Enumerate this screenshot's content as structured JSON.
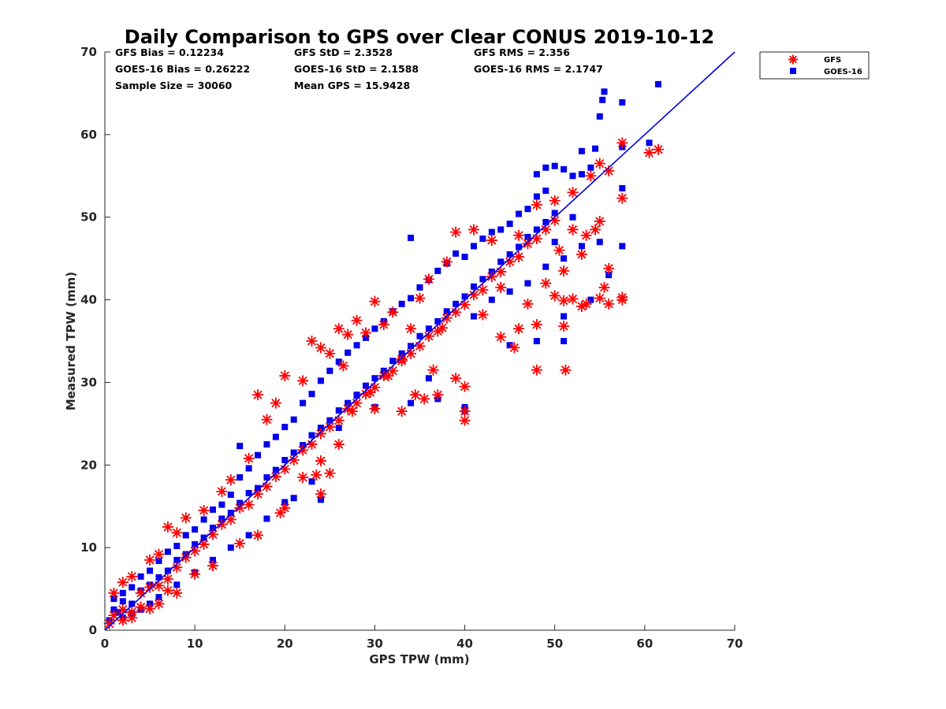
{
  "chart_data": {
    "type": "scatter",
    "title": "Daily Comparison to GPS over Clear CONUS 2019-10-12",
    "xlabel": "GPS TPW (mm)",
    "ylabel": "Measured TPW (mm)",
    "xlim": [
      0,
      70
    ],
    "ylim": [
      0,
      70
    ],
    "xticks": [
      "0",
      "10",
      "20",
      "30",
      "40",
      "50",
      "60",
      "70"
    ],
    "yticks": [
      "0",
      "10",
      "20",
      "30",
      "40",
      "50",
      "60",
      "70"
    ],
    "legend_position": "top-right outside",
    "stats": {
      "gfs_bias": "GFS Bias = 0.12234",
      "gfs_std": "GFS StD = 2.3528",
      "gfs_rms": "GFS RMS = 2.356",
      "goes_bias": "GOES-16 Bias = 0.26222",
      "goes_std": "GOES-16 StD = 2.1588",
      "goes_rms": "GOES-16 RMS = 2.1747",
      "sample_size": "Sample Size = 30060",
      "mean_gps": "Mean GPS = 15.9428"
    },
    "reference_line": {
      "name": "1:1 line",
      "color": "#0000ee",
      "x": [
        0,
        70
      ],
      "y": [
        0,
        70
      ]
    },
    "series": [
      {
        "name": "GFS",
        "marker": "asterisk",
        "color": "#ff0000",
        "points": [
          [
            1,
            1.8
          ],
          [
            2,
            2.5
          ],
          [
            3,
            2.2
          ],
          [
            4,
            4.5
          ],
          [
            5,
            5.2
          ],
          [
            6,
            5.4
          ],
          [
            7,
            6.2
          ],
          [
            8,
            7.6
          ],
          [
            9,
            8.8
          ],
          [
            10,
            9.6
          ],
          [
            11,
            10.4
          ],
          [
            12,
            11.6
          ],
          [
            13,
            12.8
          ],
          [
            14,
            13.4
          ],
          [
            15,
            14.8
          ],
          [
            16,
            15.2
          ],
          [
            17,
            16.5
          ],
          [
            18,
            17.4
          ],
          [
            19,
            18.6
          ],
          [
            20,
            19.5
          ],
          [
            21,
            20.6
          ],
          [
            22,
            21.8
          ],
          [
            23,
            22.5
          ],
          [
            24,
            23.8
          ],
          [
            25,
            24.6
          ],
          [
            26,
            25.4
          ],
          [
            27,
            26.8
          ],
          [
            28,
            27.5
          ],
          [
            29,
            28.6
          ],
          [
            30,
            29.4
          ],
          [
            31,
            30.8
          ],
          [
            32,
            31.4
          ],
          [
            33,
            32.6
          ],
          [
            34,
            33.5
          ],
          [
            35,
            34.4
          ],
          [
            36,
            35.6
          ],
          [
            37,
            36.2
          ],
          [
            38,
            37.8
          ],
          [
            39,
            38.5
          ],
          [
            40,
            39.4
          ],
          [
            41,
            40.6
          ],
          [
            42,
            41.2
          ],
          [
            43,
            42.8
          ],
          [
            44,
            43.4
          ],
          [
            45,
            44.6
          ],
          [
            46,
            45.2
          ],
          [
            47,
            46.8
          ],
          [
            48,
            47.4
          ],
          [
            49,
            48.5
          ],
          [
            50,
            49.6
          ],
          [
            1,
            4.5
          ],
          [
            2,
            5.8
          ],
          [
            3,
            6.5
          ],
          [
            5,
            8.5
          ],
          [
            6,
            9.2
          ],
          [
            7,
            12.5
          ],
          [
            8,
            11.8
          ],
          [
            9,
            13.6
          ],
          [
            11,
            14.5
          ],
          [
            13,
            16.8
          ],
          [
            14,
            18.2
          ],
          [
            16,
            20.8
          ],
          [
            17,
            28.5
          ],
          [
            18,
            25.5
          ],
          [
            19,
            27.5
          ],
          [
            20,
            30.8
          ],
          [
            22,
            30.2
          ],
          [
            23,
            35.0
          ],
          [
            24,
            34.2
          ],
          [
            25,
            33.5
          ],
          [
            26,
            36.5
          ],
          [
            27,
            35.8
          ],
          [
            30,
            39.8
          ],
          [
            32,
            38.5
          ],
          [
            35,
            40.2
          ],
          [
            36,
            42.5
          ],
          [
            38,
            44.6
          ],
          [
            39,
            48.2
          ],
          [
            41,
            48.5
          ],
          [
            43,
            47.2
          ],
          [
            46,
            47.8
          ],
          [
            48,
            51.5
          ],
          [
            50,
            52.0
          ],
          [
            52,
            53.0
          ],
          [
            54,
            55.0
          ],
          [
            55,
            56.5
          ],
          [
            57.5,
            59.0
          ],
          [
            60.5,
            57.8
          ],
          [
            61.5,
            58.2
          ],
          [
            56,
            55.6
          ],
          [
            57.5,
            52.3
          ],
          [
            55,
            49.5
          ],
          [
            54.5,
            48.5
          ],
          [
            56,
            43.8
          ],
          [
            55.5,
            41.5
          ],
          [
            55,
            40.2
          ],
          [
            56,
            39.5
          ],
          [
            57.5,
            40.0
          ],
          [
            57.5,
            40.3
          ],
          [
            53.5,
            39.5
          ],
          [
            53,
            39.2
          ],
          [
            52,
            40.1
          ],
          [
            51,
            39.9
          ],
          [
            50,
            40.5
          ],
          [
            48,
            31.5
          ],
          [
            51.2,
            31.5
          ],
          [
            48,
            37.0
          ],
          [
            51,
            36.8
          ],
          [
            45.5,
            34.2
          ],
          [
            44,
            35.5
          ],
          [
            40,
            25.4
          ],
          [
            40,
            26.5
          ],
          [
            40,
            29.5
          ],
          [
            39,
            30.5
          ],
          [
            37,
            28.5
          ],
          [
            35.5,
            28.0
          ],
          [
            36.5,
            31.5
          ],
          [
            34.5,
            28.5
          ],
          [
            33,
            26.5
          ],
          [
            30,
            26.8
          ],
          [
            26,
            22.5
          ],
          [
            24,
            20.5
          ],
          [
            23.5,
            18.8
          ],
          [
            24,
            16.5
          ],
          [
            25,
            19.0
          ],
          [
            22,
            18.5
          ],
          [
            20,
            14.8
          ],
          [
            19.5,
            14.2
          ],
          [
            17,
            11.5
          ],
          [
            15,
            10.5
          ],
          [
            12,
            7.8
          ],
          [
            10,
            6.8
          ],
          [
            8,
            4.5
          ],
          [
            6,
            3.2
          ],
          [
            5,
            2.6
          ],
          [
            3,
            1.5
          ],
          [
            2,
            1.2
          ],
          [
            0.5,
            0.8
          ],
          [
            4,
            2.8
          ],
          [
            7,
            4.8
          ],
          [
            27.5,
            26.5
          ],
          [
            29.5,
            28.8
          ],
          [
            31.5,
            30.8
          ],
          [
            33,
            32.8
          ],
          [
            34,
            36.5
          ],
          [
            37.5,
            36.6
          ],
          [
            42,
            38.2
          ],
          [
            44,
            41.5
          ],
          [
            46,
            36.5
          ],
          [
            47,
            39.5
          ],
          [
            49,
            42.0
          ],
          [
            51,
            43.5
          ],
          [
            53,
            45.5
          ],
          [
            52,
            48.5
          ],
          [
            50.5,
            46.0
          ],
          [
            53.5,
            47.8
          ],
          [
            31,
            37.0
          ],
          [
            28,
            37.5
          ],
          [
            29,
            36.0
          ],
          [
            26.5,
            32.0
          ]
        ]
      },
      {
        "name": "GOES-16",
        "marker": "square",
        "color": "#0000ee",
        "points": [
          [
            1,
            2.5
          ],
          [
            2,
            3.5
          ],
          [
            3,
            3.2
          ],
          [
            4,
            4.8
          ],
          [
            5,
            5.5
          ],
          [
            6,
            6.4
          ],
          [
            7,
            7.2
          ],
          [
            8,
            8.5
          ],
          [
            9,
            9.2
          ],
          [
            10,
            10.4
          ],
          [
            11,
            11.2
          ],
          [
            12,
            12.4
          ],
          [
            13,
            13.5
          ],
          [
            14,
            14.2
          ],
          [
            15,
            15.4
          ],
          [
            16,
            16.6
          ],
          [
            17,
            17.2
          ],
          [
            18,
            18.5
          ],
          [
            19,
            19.4
          ],
          [
            20,
            20.6
          ],
          [
            21,
            21.5
          ],
          [
            22,
            22.4
          ],
          [
            23,
            23.6
          ],
          [
            24,
            24.5
          ],
          [
            25,
            25.4
          ],
          [
            26,
            26.6
          ],
          [
            27,
            27.5
          ],
          [
            28,
            28.4
          ],
          [
            29,
            29.6
          ],
          [
            30,
            30.5
          ],
          [
            31,
            31.4
          ],
          [
            32,
            32.6
          ],
          [
            33,
            33.5
          ],
          [
            34,
            34.4
          ],
          [
            35,
            35.6
          ],
          [
            36,
            36.5
          ],
          [
            37,
            37.4
          ],
          [
            38,
            38.6
          ],
          [
            39,
            39.5
          ],
          [
            40,
            40.4
          ],
          [
            41,
            41.6
          ],
          [
            42,
            42.5
          ],
          [
            43,
            43.4
          ],
          [
            44,
            44.6
          ],
          [
            45,
            45.5
          ],
          [
            46,
            46.4
          ],
          [
            47,
            47.6
          ],
          [
            48,
            48.5
          ],
          [
            49,
            49.4
          ],
          [
            50,
            50.5
          ],
          [
            1,
            3.8
          ],
          [
            2,
            4.5
          ],
          [
            3,
            5.2
          ],
          [
            4,
            6.5
          ],
          [
            5,
            7.2
          ],
          [
            6,
            8.4
          ],
          [
            7,
            9.5
          ],
          [
            8,
            10.2
          ],
          [
            9,
            11.5
          ],
          [
            10,
            12.2
          ],
          [
            11,
            13.4
          ],
          [
            12,
            14.6
          ],
          [
            13,
            15.2
          ],
          [
            14,
            16.4
          ],
          [
            15,
            18.5
          ],
          [
            15,
            22.3
          ],
          [
            16,
            19.6
          ],
          [
            17,
            21.2
          ],
          [
            18,
            22.5
          ],
          [
            19,
            23.4
          ],
          [
            20,
            24.6
          ],
          [
            21,
            25.5
          ],
          [
            22,
            27.5
          ],
          [
            23,
            28.6
          ],
          [
            24,
            30.2
          ],
          [
            25,
            31.4
          ],
          [
            26,
            32.5
          ],
          [
            27,
            33.6
          ],
          [
            28,
            34.5
          ],
          [
            29,
            35.4
          ],
          [
            30,
            36.5
          ],
          [
            31,
            37.4
          ],
          [
            32,
            38.6
          ],
          [
            33,
            39.5
          ],
          [
            34,
            40.2
          ],
          [
            35,
            41.5
          ],
          [
            36,
            42.4
          ],
          [
            37,
            43.5
          ],
          [
            38,
            44.4
          ],
          [
            39,
            45.6
          ],
          [
            40,
            45.2
          ],
          [
            41,
            46.5
          ],
          [
            42,
            47.4
          ],
          [
            43,
            48.2
          ],
          [
            44,
            48.5
          ],
          [
            45,
            49.2
          ],
          [
            46,
            50.4
          ],
          [
            47,
            51.0
          ],
          [
            48,
            52.5
          ],
          [
            49,
            53.2
          ],
          [
            34,
            47.5
          ],
          [
            48,
            55.2
          ],
          [
            49,
            56.0
          ],
          [
            50,
            56.2
          ],
          [
            51,
            55.8
          ],
          [
            52,
            55.0
          ],
          [
            53,
            55.2
          ],
          [
            54,
            56.0
          ],
          [
            53,
            58.0
          ],
          [
            54.5,
            58.3
          ],
          [
            55,
            62.2
          ],
          [
            55.3,
            64.2
          ],
          [
            55.5,
            65.2
          ],
          [
            57.5,
            63.9
          ],
          [
            61.5,
            66.1
          ],
          [
            60.5,
            59.0
          ],
          [
            57.5,
            58.5
          ],
          [
            57.5,
            53.5
          ],
          [
            57.5,
            46.5
          ],
          [
            56,
            43.0
          ],
          [
            54,
            40.0
          ],
          [
            51,
            38.0
          ],
          [
            51,
            35.0
          ],
          [
            48,
            35.0
          ],
          [
            45,
            34.5
          ],
          [
            40,
            26.5
          ],
          [
            40,
            27.0
          ],
          [
            37,
            28.0
          ],
          [
            36,
            30.5
          ],
          [
            34,
            27.5
          ],
          [
            30,
            27.0
          ],
          [
            28,
            28.5
          ],
          [
            26,
            24.5
          ],
          [
            24,
            15.8
          ],
          [
            23,
            18.0
          ],
          [
            21,
            16.0
          ],
          [
            20,
            15.5
          ],
          [
            18,
            13.5
          ],
          [
            16,
            11.5
          ],
          [
            14,
            10.0
          ],
          [
            12,
            8.5
          ],
          [
            10,
            7.0
          ],
          [
            8,
            5.5
          ],
          [
            6,
            4.0
          ],
          [
            4,
            2.5
          ],
          [
            2,
            1.5
          ],
          [
            0.5,
            1.2
          ],
          [
            1.5,
            2.2
          ],
          [
            3,
            2.0
          ],
          [
            5,
            3.2
          ],
          [
            45,
            41.0
          ],
          [
            47,
            42.0
          ],
          [
            49,
            44.0
          ],
          [
            51,
            45.0
          ],
          [
            53,
            46.5
          ],
          [
            55,
            47.0
          ],
          [
            52,
            50.0
          ],
          [
            50,
            47.0
          ],
          [
            43,
            40.0
          ],
          [
            41,
            38.0
          ]
        ]
      }
    ]
  }
}
